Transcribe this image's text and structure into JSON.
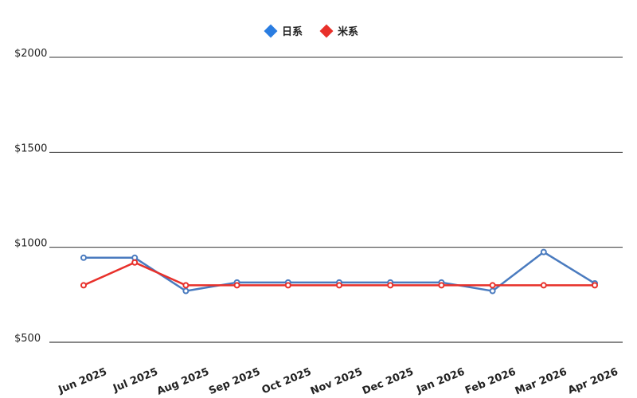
{
  "chart_data": {
    "type": "line",
    "categories": [
      "Jun 2025",
      "Jul 2025",
      "Aug 2025",
      "Sep 2025",
      "Oct 2025",
      "Nov 2025",
      "Dec 2025",
      "Jan 2026",
      "Feb 2026",
      "Mar 2026",
      "Apr 2026"
    ],
    "series": [
      {
        "name": "日系",
        "color": "#4a7bbf",
        "legend_color": "#2a7de1",
        "values": [
          945,
          945,
          770,
          815,
          815,
          815,
          815,
          815,
          770,
          975,
          810
        ]
      },
      {
        "name": "米系",
        "color": "#e8302a",
        "legend_color": "#e8302a",
        "values": [
          800,
          920,
          800,
          800,
          800,
          800,
          800,
          800,
          800,
          800,
          800
        ]
      }
    ],
    "ylim": [
      500,
      2000
    ],
    "yticks": [
      {
        "value": 500,
        "label": "$500"
      },
      {
        "value": 1000,
        "label": "$1000"
      },
      {
        "value": 1500,
        "label": "$1500"
      },
      {
        "value": 2000,
        "label": "$2000"
      }
    ],
    "grid": true,
    "legend": "top"
  }
}
